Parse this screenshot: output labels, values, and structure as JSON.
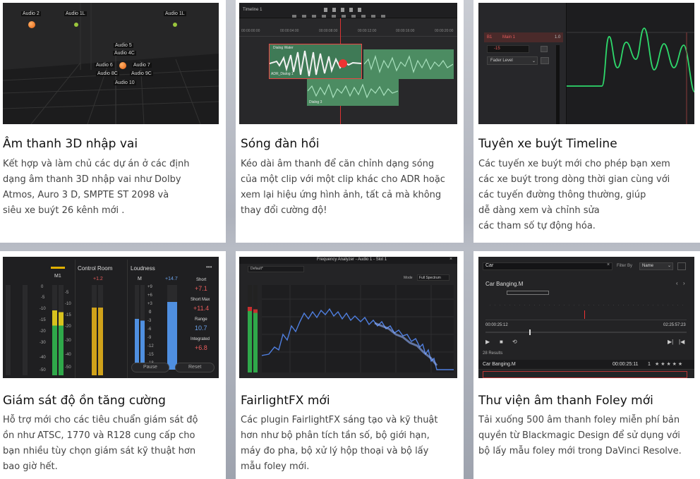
{
  "cards": [
    {
      "title": "Âm thanh 3D nhập vai",
      "lines": [
        "Kết hợp và làm chủ các dự án ở các định",
        "dạng âm thanh 3D nhập vai như Dolby",
        "Atmos, Auro 3 D, SMPTE ST 2098 và",
        "siêu xe buýt 26 kênh mới ."
      ]
    },
    {
      "title": "Sóng đàn hồi",
      "lines": [
        "Kéo dài âm thanh để căn chỉnh dạng sóng",
        "của một clip với một clip khác cho ADR hoặc",
        "xem lại hiệu ứng hình ảnh, tất cả mà không",
        "thay đổi cường độ!"
      ]
    },
    {
      "title": "Tuyên xe buýt Timeline",
      "lines": [
        "Các tuyến xe buýt mới cho phép bạn xem",
        "các xe buýt trong dòng thời gian cùng với",
        "các tuyến đường thông thường, giúp",
        "dễ dàng xem và chỉnh sửa",
        "các tham số tự động hóa."
      ]
    },
    {
      "title": "Giám sát độ ồn tăng cường",
      "lines": [
        "Hỗ trợ mới cho các tiêu chuẩn giám sát độ",
        "ồn như ATSC, 1770 và R128 cung cấp cho",
        "bạn nhiều tùy chọn giám sát kỹ thuật hơn",
        "bao giờ hết."
      ]
    },
    {
      "title": "FairlightFX mới",
      "lines": [
        "Các plugin FairlightFX sáng tạo và kỹ thuật",
        "hơn như bộ phân tích tần số, bộ giới hạn,",
        "máy đo pha, bộ xử lý hộp thoại và bộ lấy",
        "mẫu foley mới."
      ]
    },
    {
      "title": "Thư viện âm thanh Foley mới",
      "lines": [
        "Tải xuống 500 âm thanh foley miễn phí bản",
        "quyền từ Blackmagic Design để sử dụng với",
        "bộ lấy mẫu foley mới trong DaVinci Resolve."
      ]
    }
  ],
  "s1": {
    "objects": [
      "Audio 2",
      "Audio 1L",
      "Audio 1L",
      "Audio 5",
      "Audio 4C",
      "Audio 6",
      "Audio 7",
      "Audio 8C",
      "Audio 9C",
      "Audio 10"
    ]
  },
  "s2": {
    "timeline": "Timeline 1",
    "ruler": [
      "00:00:00:00",
      "00:00:04:00",
      "00:00:08:00",
      "00:00:12:00",
      "00:00:16:00",
      "00:00:20:00"
    ],
    "clip_top": "Dialog Water",
    "clip_mid": "ADR_Dialog 1",
    "clip_bot": "Dialog 3"
  },
  "s3": {
    "bus": "Main 1",
    "bus_id": "B1",
    "gain": "-15",
    "automation": "Fader Level",
    "num": "1.0"
  },
  "s4": {
    "bus": "M1",
    "control_room": "Control Room",
    "loudness": "Loudness",
    "m_label": "M",
    "peak": "+1.2",
    "target": "+14.7",
    "short_label": "Short",
    "short_val": "+7.1",
    "short_max_label": "Short Max",
    "short_max_val": "+11.4",
    "range_label": "Range",
    "range_val": "10.7",
    "integrated_label": "Integrated",
    "integrated_val": "+6.8",
    "pause": "Pause",
    "reset": "Reset",
    "scale": [
      "+9",
      "+6",
      "+3",
      "0",
      "-3",
      "-6",
      "-9",
      "-12",
      "-15",
      "-18"
    ],
    "left_scale": [
      "0",
      "-5",
      "-10",
      "-15",
      "-20",
      "-30",
      "-40",
      "-50"
    ],
    "meter_scale": [
      "-5",
      "-10",
      "-15",
      "-20",
      "-30",
      "-40",
      "-50"
    ]
  },
  "s5": {
    "title": "Frequency Analyzer - Audio 1 - Slot 1",
    "preset": "Default*",
    "mode_label": "Mode",
    "mode": "Full Spectrum"
  },
  "s6": {
    "search": "Car",
    "filter_label": "Filter By",
    "filter": "Name",
    "clip": "Car Banging.M",
    "time_start": "00:00:25:12",
    "time_end": "02:25:57:23",
    "results": "28 Results",
    "row_name": "Car Banging.M",
    "row_time": "00:00:25:11",
    "row_num": "1"
  }
}
